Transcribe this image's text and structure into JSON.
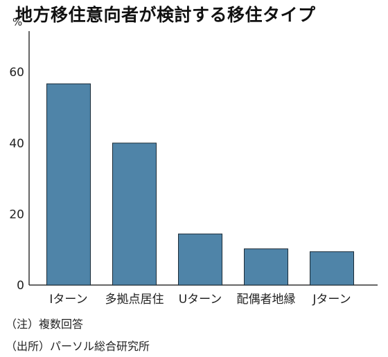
{
  "chart_data": {
    "type": "bar",
    "title": "地方移住意向者が検討する移住タイプ",
    "unit": "%",
    "categories": [
      "Iターン",
      "多拠点居住",
      "Uターン",
      "配偶者地縁",
      "Jターン"
    ],
    "values": [
      56.7,
      40.0,
      14.4,
      10.2,
      9.4
    ],
    "yticks": [
      0,
      20,
      40,
      60
    ],
    "ylim": [
      0,
      68
    ],
    "grid": false,
    "colors": {
      "bar": "#4f84a8",
      "bar_edge": "#1a2a35",
      "axis": "#333333"
    }
  },
  "notes": {
    "note": "（注）複数回答",
    "source": "（出所）パーソル総合研究所"
  }
}
